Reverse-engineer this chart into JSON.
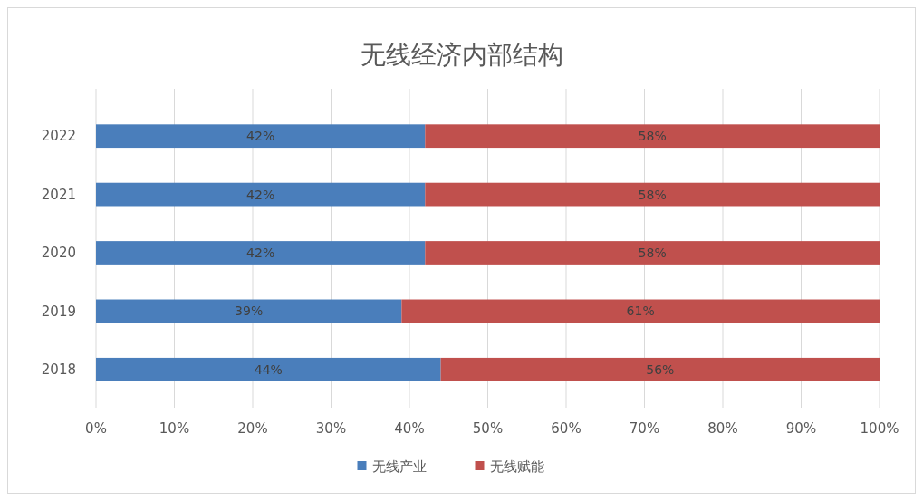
{
  "chart_data": {
    "type": "bar",
    "title": "无线经济内部结构",
    "orientation": "horizontal",
    "stacked": true,
    "categories": [
      "2022",
      "2021",
      "2020",
      "2019",
      "2018"
    ],
    "series": [
      {
        "name": "无线产业",
        "color": "#4a7ebb",
        "values": [
          42,
          42,
          42,
          39,
          44
        ],
        "value_labels": [
          "42%",
          "42%",
          "42%",
          "39%",
          "44%"
        ]
      },
      {
        "name": "无线赋能",
        "color": "#c0504d",
        "values": [
          58,
          58,
          58,
          61,
          56
        ],
        "value_labels": [
          "58%",
          "58%",
          "58%",
          "61%",
          "56%"
        ]
      }
    ],
    "xlim": [
      0,
      100
    ],
    "xticks": [
      {
        "value": 0,
        "label": "0%"
      },
      {
        "value": 10,
        "label": "10%"
      },
      {
        "value": 20,
        "label": "20%"
      },
      {
        "value": 30,
        "label": "30%"
      },
      {
        "value": 40,
        "label": "40%"
      },
      {
        "value": 50,
        "label": "50%"
      },
      {
        "value": 60,
        "label": "60%"
      },
      {
        "value": 70,
        "label": "70%"
      },
      {
        "value": 80,
        "label": "80%"
      },
      {
        "value": 90,
        "label": "90%"
      },
      {
        "value": 100,
        "label": "100%"
      }
    ],
    "grid": "x",
    "legend": "bottom"
  }
}
